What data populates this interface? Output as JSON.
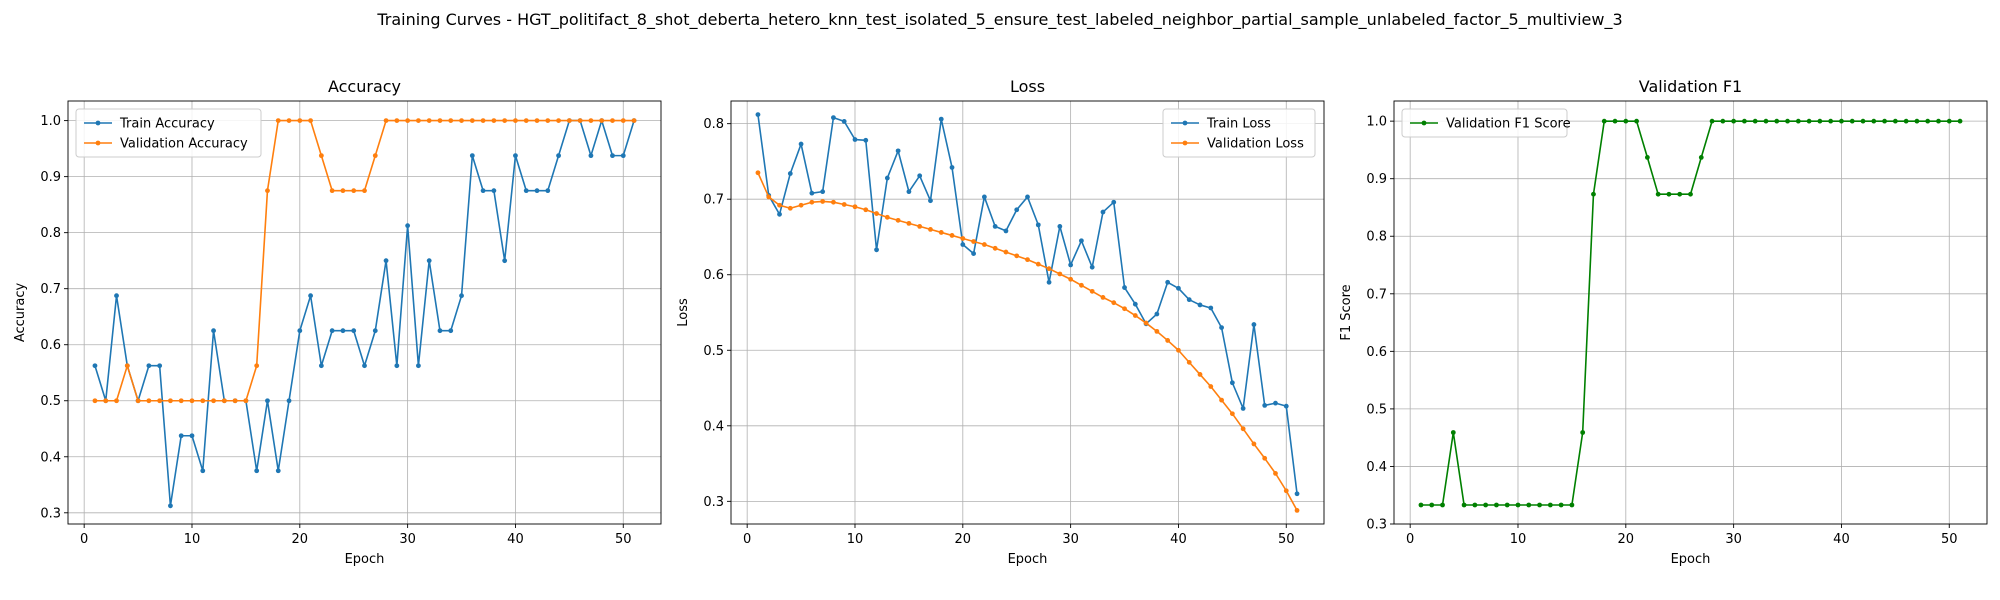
{
  "figure_title": "Training Curves - HGT_politifact_8_shot_deberta_hetero_knn_test_isolated_5_ensure_test_labeled_neighbor_partial_sample_unlabeled_factor_5_multiview_3",
  "colors": {
    "blue": "#1f77b4",
    "orange": "#ff7f0e",
    "green": "#008000",
    "grid": "#b0b0b0"
  },
  "chart_data": [
    {
      "type": "line",
      "title": "Accuracy",
      "xlabel": "Epoch",
      "ylabel": "Accuracy",
      "xlim": [
        -1.5,
        53.5
      ],
      "ylim": [
        0.28,
        1.035
      ],
      "xticks": [
        0,
        10,
        20,
        30,
        40,
        50
      ],
      "yticks": [
        0.3,
        0.4,
        0.5,
        0.6,
        0.7,
        0.8,
        0.9,
        1.0
      ],
      "ytick_labels": [
        "0.3",
        "0.4",
        "0.5",
        "0.6",
        "0.7",
        "0.8",
        "0.9",
        "1.0"
      ],
      "grid": true,
      "legend": "upper-left",
      "x": [
        1,
        2,
        3,
        4,
        5,
        6,
        7,
        8,
        9,
        10,
        11,
        12,
        13,
        14,
        15,
        16,
        17,
        18,
        19,
        20,
        21,
        22,
        23,
        24,
        25,
        26,
        27,
        28,
        29,
        30,
        31,
        32,
        33,
        34,
        35,
        36,
        37,
        38,
        39,
        40,
        41,
        42,
        43,
        44,
        45,
        46,
        47,
        48,
        49,
        50,
        51
      ],
      "series": [
        {
          "name": "Train Accuracy",
          "color": "#1f77b4",
          "values": [
            0.5625,
            0.5,
            0.6875,
            0.5625,
            0.5,
            0.5625,
            0.5625,
            0.3125,
            0.4375,
            0.4375,
            0.375,
            0.625,
            0.5,
            0.5,
            0.5,
            0.375,
            0.5,
            0.375,
            0.5,
            0.625,
            0.6875,
            0.5625,
            0.625,
            0.625,
            0.625,
            0.5625,
            0.625,
            0.75,
            0.5625,
            0.8125,
            0.5625,
            0.75,
            0.625,
            0.625,
            0.6875,
            0.9375,
            0.875,
            0.875,
            0.75,
            0.9375,
            0.875,
            0.875,
            0.875,
            0.9375,
            1.0,
            1.0,
            0.9375,
            1.0,
            0.9375,
            0.9375,
            1.0
          ]
        },
        {
          "name": "Validation Accuracy",
          "color": "#ff7f0e",
          "values": [
            0.5,
            0.5,
            0.5,
            0.5625,
            0.5,
            0.5,
            0.5,
            0.5,
            0.5,
            0.5,
            0.5,
            0.5,
            0.5,
            0.5,
            0.5,
            0.5625,
            0.875,
            1.0,
            1.0,
            1.0,
            1.0,
            0.9375,
            0.875,
            0.875,
            0.875,
            0.875,
            0.9375,
            1.0,
            1.0,
            1.0,
            1.0,
            1.0,
            1.0,
            1.0,
            1.0,
            1.0,
            1.0,
            1.0,
            1.0,
            1.0,
            1.0,
            1.0,
            1.0,
            1.0,
            1.0,
            1.0,
            1.0,
            1.0,
            1.0,
            1.0,
            1.0
          ]
        }
      ]
    },
    {
      "type": "line",
      "title": "Loss",
      "xlabel": "Epoch",
      "ylabel": "Loss",
      "xlim": [
        -1.5,
        53.5
      ],
      "ylim": [
        0.27,
        0.83
      ],
      "xticks": [
        0,
        10,
        20,
        30,
        40,
        50
      ],
      "yticks": [
        0.3,
        0.4,
        0.5,
        0.6,
        0.7,
        0.8
      ],
      "ytick_labels": [
        "0.3",
        "0.4",
        "0.5",
        "0.6",
        "0.7",
        "0.8"
      ],
      "grid": true,
      "legend": "upper-right",
      "x": [
        1,
        2,
        3,
        4,
        5,
        6,
        7,
        8,
        9,
        10,
        11,
        12,
        13,
        14,
        15,
        16,
        17,
        18,
        19,
        20,
        21,
        22,
        23,
        24,
        25,
        26,
        27,
        28,
        29,
        30,
        31,
        32,
        33,
        34,
        35,
        36,
        37,
        38,
        39,
        40,
        41,
        42,
        43,
        44,
        45,
        46,
        47,
        48,
        49,
        50,
        51
      ],
      "series": [
        {
          "name": "Train Loss",
          "color": "#1f77b4",
          "values": [
            0.812,
            0.705,
            0.68,
            0.734,
            0.773,
            0.708,
            0.71,
            0.808,
            0.803,
            0.779,
            0.778,
            0.633,
            0.728,
            0.764,
            0.71,
            0.731,
            0.698,
            0.806,
            0.742,
            0.64,
            0.628,
            0.703,
            0.664,
            0.658,
            0.686,
            0.703,
            0.666,
            0.59,
            0.664,
            0.613,
            0.645,
            0.61,
            0.683,
            0.696,
            0.583,
            0.561,
            0.535,
            0.548,
            0.59,
            0.582,
            0.567,
            0.56,
            0.556,
            0.53,
            0.457,
            0.423,
            0.534,
            0.427,
            0.43,
            0.426,
            0.31
          ]
        },
        {
          "name": "Validation Loss",
          "color": "#ff7f0e",
          "values": [
            0.735,
            0.703,
            0.692,
            0.688,
            0.692,
            0.696,
            0.697,
            0.696,
            0.693,
            0.69,
            0.686,
            0.681,
            0.676,
            0.672,
            0.668,
            0.664,
            0.66,
            0.656,
            0.652,
            0.648,
            0.644,
            0.64,
            0.635,
            0.63,
            0.625,
            0.62,
            0.614,
            0.608,
            0.601,
            0.594,
            0.586,
            0.578,
            0.57,
            0.563,
            0.555,
            0.546,
            0.536,
            0.525,
            0.513,
            0.5,
            0.484,
            0.468,
            0.452,
            0.434,
            0.416,
            0.396,
            0.376,
            0.357,
            0.337,
            0.314,
            0.288
          ]
        }
      ]
    },
    {
      "type": "line",
      "title": "Validation F1",
      "xlabel": "Epoch",
      "ylabel": "F1 Score",
      "xlim": [
        -1.5,
        53.5
      ],
      "ylim": [
        0.3,
        1.035
      ],
      "xticks": [
        0,
        10,
        20,
        30,
        40,
        50
      ],
      "yticks": [
        0.3,
        0.4,
        0.5,
        0.6,
        0.7,
        0.8,
        0.9,
        1.0
      ],
      "ytick_labels": [
        "0.3",
        "0.4",
        "0.5",
        "0.6",
        "0.7",
        "0.8",
        "0.9",
        "1.0"
      ],
      "grid": true,
      "legend": "upper-left",
      "x": [
        1,
        2,
        3,
        4,
        5,
        6,
        7,
        8,
        9,
        10,
        11,
        12,
        13,
        14,
        15,
        16,
        17,
        18,
        19,
        20,
        21,
        22,
        23,
        24,
        25,
        26,
        27,
        28,
        29,
        30,
        31,
        32,
        33,
        34,
        35,
        36,
        37,
        38,
        39,
        40,
        41,
        42,
        43,
        44,
        45,
        46,
        47,
        48,
        49,
        50,
        51
      ],
      "series": [
        {
          "name": "Validation F1 Score",
          "color": "#008000",
          "values": [
            0.333,
            0.333,
            0.333,
            0.459,
            0.333,
            0.333,
            0.333,
            0.333,
            0.333,
            0.333,
            0.333,
            0.333,
            0.333,
            0.333,
            0.333,
            0.459,
            0.873,
            1.0,
            1.0,
            1.0,
            1.0,
            0.937,
            0.873,
            0.873,
            0.873,
            0.873,
            0.937,
            1.0,
            1.0,
            1.0,
            1.0,
            1.0,
            1.0,
            1.0,
            1.0,
            1.0,
            1.0,
            1.0,
            1.0,
            1.0,
            1.0,
            1.0,
            1.0,
            1.0,
            1.0,
            1.0,
            1.0,
            1.0,
            1.0,
            1.0,
            1.0
          ]
        }
      ]
    }
  ]
}
